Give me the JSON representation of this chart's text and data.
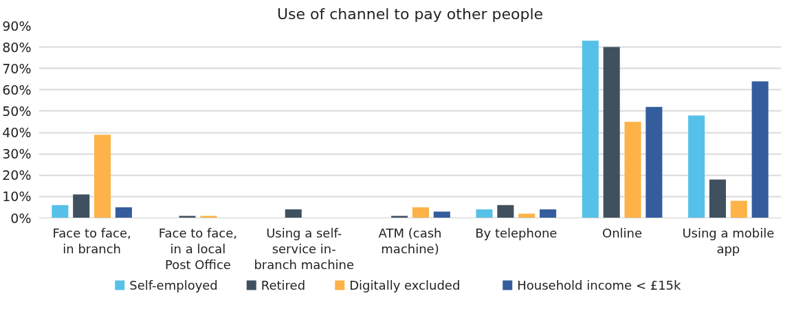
{
  "chart_data": {
    "type": "bar",
    "title": "Use of channel to pay other people",
    "categories": [
      "Face to face, in branch",
      "Face to face, in a local Post Office",
      "Using a self-service in-branch machine",
      "ATM (cash machine)",
      "By telephone",
      "Online",
      "Using a mobile app"
    ],
    "series": [
      {
        "name": "Self-employed",
        "color": "#56c1e8",
        "values": [
          6,
          0,
          0,
          0,
          4,
          83,
          48
        ]
      },
      {
        "name": "Retired",
        "color": "#40505f",
        "values": [
          11,
          1,
          4,
          1,
          6,
          80,
          18
        ]
      },
      {
        "name": "Digitally excluded",
        "color": "#fdb347",
        "values": [
          39,
          1,
          0,
          5,
          2,
          45,
          8
        ]
      },
      {
        "name": "Household income < £15k",
        "color": "#345d9d",
        "values": [
          5,
          0,
          0,
          3,
          4,
          52,
          64
        ]
      }
    ],
    "ylim": [
      0,
      90
    ],
    "yticks": [
      {
        "value": 0,
        "label": "0%"
      },
      {
        "value": 10,
        "label": "10%"
      },
      {
        "value": 20,
        "label": "20%"
      },
      {
        "value": 30,
        "label": "30%"
      },
      {
        "value": 40,
        "label": "40%"
      },
      {
        "value": 50,
        "label": "50%"
      },
      {
        "value": 60,
        "label": "60%"
      },
      {
        "value": 70,
        "label": "70%"
      },
      {
        "value": 80,
        "label": "80%"
      },
      {
        "value": 90,
        "label": "90%"
      }
    ],
    "grid": "y",
    "legend": "bottom"
  }
}
